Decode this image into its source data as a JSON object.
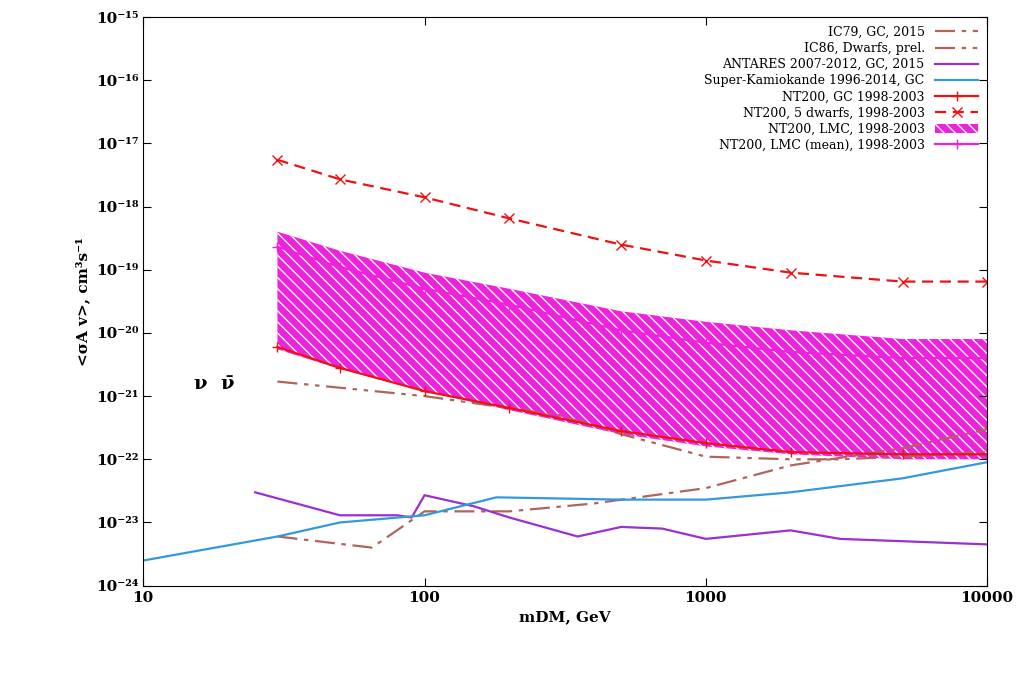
{
  "chart_data": {
    "type": "line",
    "x_label": "mDM, GeV",
    "y_label": "<σA v>, cm³s⁻¹",
    "annotation": "ν  ν̄",
    "log": true,
    "legend": "upper right",
    "xlim": [
      10,
      10000
    ],
    "ylim": [
      1e-24,
      1e-15
    ],
    "xticks": [
      10,
      100,
      1000,
      10000
    ],
    "yticks": [
      {
        "value": 1e-24,
        "label": "10⁻²⁴"
      },
      {
        "value": 1e-23,
        "label": "10⁻²³"
      },
      {
        "value": 1e-22,
        "label": "10⁻²²"
      },
      {
        "value": 1e-21,
        "label": "10⁻²¹"
      },
      {
        "value": 1e-20,
        "label": "10⁻²⁰"
      },
      {
        "value": 1e-19,
        "label": "10⁻¹⁹"
      },
      {
        "value": 1e-18,
        "label": "10⁻¹⁸"
      },
      {
        "value": 1e-17,
        "label": "10⁻¹⁷"
      },
      {
        "value": 1e-16,
        "label": "10⁻¹⁶"
      },
      {
        "value": 1e-15,
        "label": "10⁻¹⁵"
      }
    ],
    "series": [
      {
        "name": "IC79, GC, 2015",
        "type": "line",
        "color": "#b0645a",
        "line_style": "dashdot",
        "x": [
          30,
          65,
          100,
          200,
          400,
          1000,
          2000,
          5000,
          10000
        ],
        "values": [
          6e-24,
          4e-24,
          1.5e-23,
          1.5e-23,
          2e-23,
          3.5e-23,
          8e-23,
          1.5e-22,
          3e-22
        ]
      },
      {
        "name": "IC86, Dwarfs, prel.",
        "type": "line",
        "color": "#b0645a",
        "line_style": "dashdotdot",
        "x": [
          30,
          100,
          300,
          500,
          1000,
          2000,
          3000,
          5000,
          10000
        ],
        "values": [
          1.7e-21,
          1e-21,
          5e-22,
          2.5e-22,
          1.1e-22,
          1e-22,
          1e-22,
          1.1e-22,
          1.3e-22
        ]
      },
      {
        "name": "ANTARES 2007-2012, GC, 2015",
        "type": "line",
        "color": "#9b30d0",
        "line_style": "solid",
        "x": [
          25,
          50,
          80,
          90,
          100,
          150,
          200,
          350,
          500,
          700,
          1000,
          2000,
          3000,
          10000
        ],
        "values": [
          3e-23,
          1.3e-23,
          1.3e-23,
          1.2e-23,
          2.7e-23,
          1.8e-23,
          1.2e-23,
          6e-24,
          8.5e-24,
          8e-24,
          5.5e-24,
          7.5e-24,
          5.5e-24,
          4.5e-24
        ]
      },
      {
        "name": "Super-Kamiokande 1996-2014, GC",
        "type": "line",
        "color": "#3399dd",
        "line_style": "solid",
        "x": [
          10,
          30,
          50,
          100,
          180,
          500,
          1000,
          2000,
          5000,
          10000
        ],
        "values": [
          2.5e-24,
          6e-24,
          1e-23,
          1.3e-23,
          2.5e-23,
          2.3e-23,
          2.3e-23,
          3e-23,
          5e-23,
          9e-23
        ]
      },
      {
        "name": "NT200, GC 1998-2003",
        "type": "line",
        "color": "#ee1111",
        "line_style": "solid",
        "marker": "plus",
        "x": [
          30,
          50,
          100,
          200,
          500,
          1000,
          2000,
          5000,
          10000
        ],
        "values": [
          6e-21,
          2.8e-21,
          1.2e-21,
          6.5e-22,
          2.8e-22,
          1.8e-22,
          1.3e-22,
          1.2e-22,
          1.2e-22
        ]
      },
      {
        "name": "NT200, 5 dwarfs, 1998-2003",
        "type": "line",
        "color": "#ee1111",
        "line_style": "dashed",
        "marker": "x",
        "x": [
          30,
          50,
          100,
          200,
          500,
          1000,
          2000,
          5000,
          10000
        ],
        "values": [
          5.5e-18,
          2.7e-18,
          1.4e-18,
          6.5e-19,
          2.5e-19,
          1.4e-19,
          9e-20,
          6.5e-20,
          6.5e-20
        ]
      },
      {
        "name": "NT200, LMC, 1998-2003",
        "type": "band",
        "color": "#ee22dd",
        "x": [
          30,
          50,
          100,
          200,
          500,
          1000,
          2000,
          5000,
          10000
        ],
        "lower": [
          5.5e-21,
          2.7e-21,
          1.2e-21,
          6e-22,
          2.5e-22,
          1.6e-22,
          1.2e-22,
          1e-22,
          1e-22
        ],
        "upper": [
          4e-19,
          2e-19,
          9e-20,
          5e-20,
          2.2e-20,
          1.5e-20,
          1.1e-20,
          8e-21,
          8e-21
        ]
      },
      {
        "name": "NT200, LMC (mean), 1998-2003",
        "type": "line",
        "color": "#ee22dd",
        "line_style": "solid",
        "marker": "plus",
        "x": [
          30,
          50,
          100,
          200,
          500,
          1000,
          2000,
          5000,
          10000
        ],
        "values": [
          2.3e-19,
          1.1e-19,
          5e-20,
          2.8e-20,
          1.1e-20,
          7e-21,
          5e-21,
          4e-21,
          4e-21
        ]
      }
    ]
  }
}
